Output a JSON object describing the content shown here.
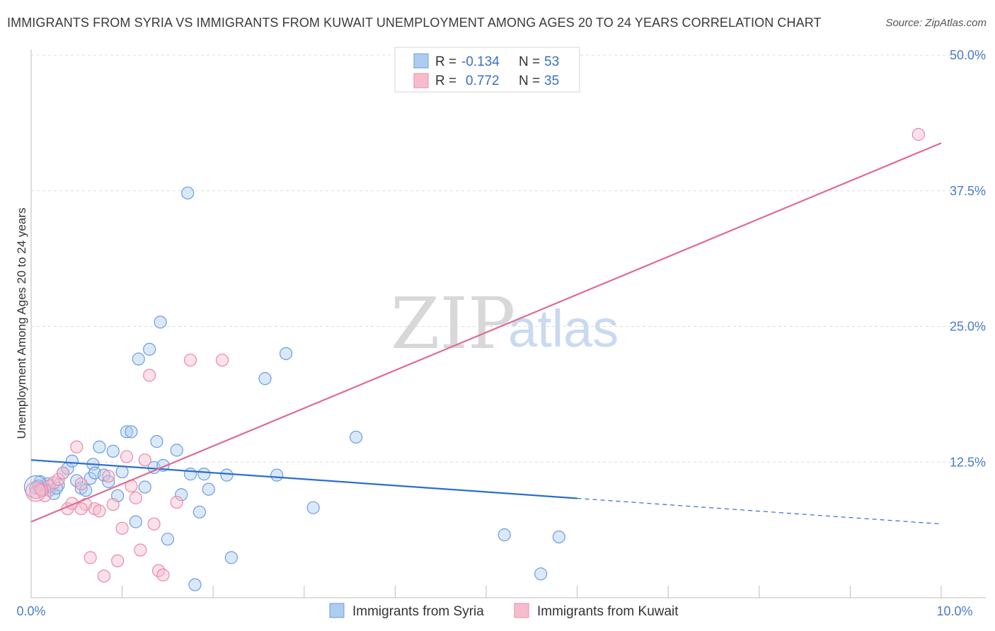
{
  "title": "IMMIGRANTS FROM SYRIA VS IMMIGRANTS FROM KUWAIT UNEMPLOYMENT AMONG AGES 20 TO 24 YEARS CORRELATION CHART",
  "source": "Source: ZipAtlas.com",
  "watermark": {
    "zip": "ZIP",
    "atlas": "atlas"
  },
  "colors": {
    "syria_fill": "#aecbf0",
    "syria_stroke": "#6a9ee0",
    "syria_line": "#2a6fcf",
    "kuwait_fill": "#f6bccd",
    "kuwait_stroke": "#e88aa8",
    "kuwait_line": "#e06a92",
    "grid": "#dcdcdc",
    "tick_label": "#4a7cc7"
  },
  "legend": {
    "rows": [
      {
        "r_label": "R =",
        "r_value": "-0.134",
        "n_label": "N =",
        "n_value": "53",
        "series": "syria"
      },
      {
        "r_label": "R =",
        "r_value": "0.772",
        "n_label": "N =",
        "n_value": "35",
        "series": "kuwait"
      }
    ]
  },
  "chart_data": {
    "type": "scatter",
    "title": "IMMIGRANTS FROM SYRIA VS IMMIGRANTS FROM KUWAIT UNEMPLOYMENT AMONG AGES 20 TO 24 YEARS CORRELATION CHART",
    "xlabel": "",
    "ylabel": "Unemployment Among Ages 20 to 24 years",
    "xlim": [
      0,
      10
    ],
    "ylim": [
      0,
      50
    ],
    "x_tick_labels": [
      "0.0%",
      "10.0%"
    ],
    "y_ticks": [
      12.5,
      25.0,
      37.5,
      50.0
    ],
    "y_tick_labels": [
      "12.5%",
      "25.0%",
      "37.5%",
      "50.0%"
    ],
    "grid": true,
    "series": [
      {
        "name": "Immigrants from Syria",
        "key": "syria",
        "r": -0.134,
        "n": 53,
        "trend": {
          "x0": 0,
          "y0": 12.7,
          "x_solid_end": 6.0,
          "x1": 10,
          "y1": 6.8
        },
        "points": [
          [
            0.05,
            10.1
          ],
          [
            0.1,
            10.7
          ],
          [
            0.12,
            10.1
          ],
          [
            0.18,
            10.5
          ],
          [
            0.2,
            9.9
          ],
          [
            0.25,
            9.6
          ],
          [
            0.3,
            10.4
          ],
          [
            0.35,
            11.5
          ],
          [
            0.4,
            11.9
          ],
          [
            0.45,
            12.6
          ],
          [
            0.5,
            10.8
          ],
          [
            0.55,
            10.1
          ],
          [
            0.6,
            9.9
          ],
          [
            0.65,
            11.0
          ],
          [
            0.68,
            12.3
          ],
          [
            0.7,
            11.5
          ],
          [
            0.75,
            13.9
          ],
          [
            0.8,
            11.3
          ],
          [
            0.85,
            10.7
          ],
          [
            0.9,
            13.5
          ],
          [
            0.95,
            9.4
          ],
          [
            1.0,
            11.6
          ],
          [
            1.05,
            15.3
          ],
          [
            1.1,
            15.3
          ],
          [
            1.15,
            7.0
          ],
          [
            1.18,
            22.0
          ],
          [
            1.25,
            10.2
          ],
          [
            1.3,
            22.9
          ],
          [
            1.35,
            12.0
          ],
          [
            1.38,
            14.4
          ],
          [
            1.42,
            25.4
          ],
          [
            1.45,
            12.2
          ],
          [
            1.5,
            5.4
          ],
          [
            1.6,
            13.6
          ],
          [
            1.65,
            9.5
          ],
          [
            1.72,
            37.3
          ],
          [
            1.75,
            11.4
          ],
          [
            1.8,
            1.2
          ],
          [
            1.85,
            7.9
          ],
          [
            1.9,
            11.4
          ],
          [
            1.95,
            10.0
          ],
          [
            2.15,
            11.3
          ],
          [
            2.2,
            3.7
          ],
          [
            2.57,
            20.2
          ],
          [
            2.7,
            11.3
          ],
          [
            2.8,
            22.5
          ],
          [
            3.1,
            8.3
          ],
          [
            3.57,
            14.8
          ],
          [
            5.2,
            5.8
          ],
          [
            5.6,
            2.2
          ],
          [
            5.8,
            5.6
          ],
          [
            0.08,
            10.3
          ],
          [
            0.28,
            10.1
          ]
        ]
      },
      {
        "name": "Immigrants from Kuwait",
        "key": "kuwait",
        "r": 0.772,
        "n": 35,
        "trend": {
          "x0": 0,
          "y0": 7.0,
          "x1": 10,
          "y1": 41.9
        },
        "points": [
          [
            0.05,
            9.7
          ],
          [
            0.1,
            10.0
          ],
          [
            0.15,
            9.4
          ],
          [
            0.2,
            10.3
          ],
          [
            0.25,
            10.6
          ],
          [
            0.3,
            10.9
          ],
          [
            0.35,
            11.5
          ],
          [
            0.4,
            8.2
          ],
          [
            0.45,
            8.7
          ],
          [
            0.5,
            13.9
          ],
          [
            0.55,
            10.5
          ],
          [
            0.6,
            8.6
          ],
          [
            0.65,
            3.7
          ],
          [
            0.7,
            8.2
          ],
          [
            0.75,
            8.0
          ],
          [
            0.8,
            2.0
          ],
          [
            0.85,
            11.2
          ],
          [
            0.9,
            8.6
          ],
          [
            0.95,
            3.4
          ],
          [
            1.0,
            6.4
          ],
          [
            1.05,
            13.0
          ],
          [
            1.1,
            10.3
          ],
          [
            1.15,
            9.2
          ],
          [
            1.2,
            4.4
          ],
          [
            1.25,
            12.7
          ],
          [
            1.3,
            20.5
          ],
          [
            1.35,
            6.8
          ],
          [
            1.4,
            2.5
          ],
          [
            1.45,
            2.1
          ],
          [
            1.6,
            8.8
          ],
          [
            1.75,
            21.9
          ],
          [
            2.1,
            21.9
          ],
          [
            9.75,
            42.7
          ],
          [
            0.12,
            9.9
          ],
          [
            0.55,
            8.2
          ]
        ]
      }
    ]
  },
  "bottom_legend": [
    {
      "label": "Immigrants from Syria",
      "series": "syria"
    },
    {
      "label": "Immigrants from Kuwait",
      "series": "kuwait"
    }
  ]
}
